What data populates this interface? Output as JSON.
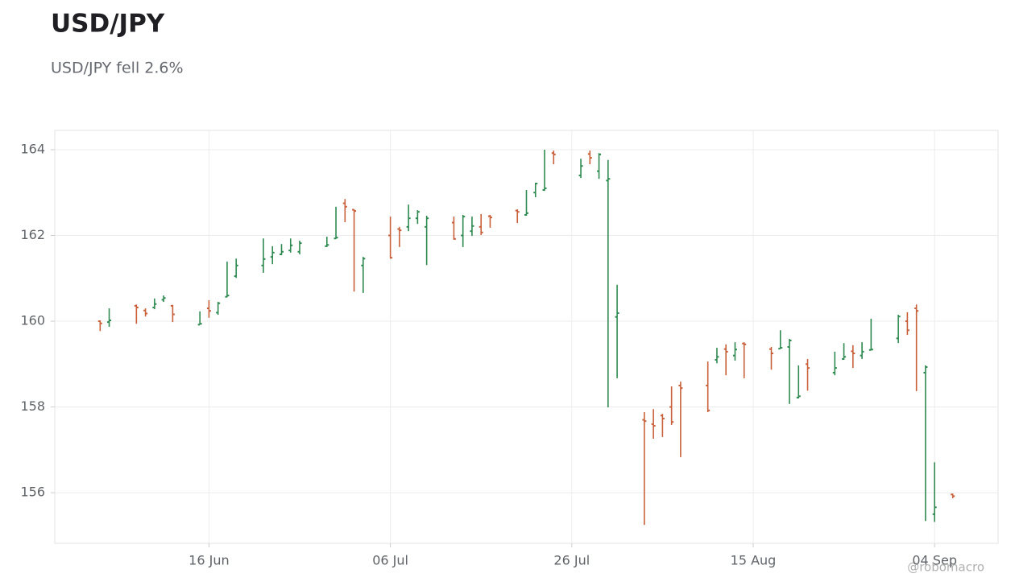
{
  "chart_data": {
    "type": "ohlc",
    "title": "USD/JPY",
    "subtitle": "USD/JPY fell 2.6%",
    "watermark": "@robomacro",
    "up_color": "#2e8a50",
    "down_color": "#c8603a",
    "grid": true,
    "x": [
      "06-04",
      "06-05",
      "06-08",
      "06-09",
      "06-10",
      "06-11",
      "06-12",
      "06-15",
      "06-16",
      "06-17",
      "06-18",
      "06-19",
      "06-22",
      "06-23",
      "06-24",
      "06-25",
      "06-26",
      "06-29",
      "06-30",
      "07-01",
      "07-02",
      "07-03",
      "07-06",
      "07-07",
      "07-08",
      "07-09",
      "07-10",
      "07-13",
      "07-14",
      "07-15",
      "07-16",
      "07-17",
      "07-20",
      "07-21",
      "07-22",
      "07-23",
      "07-24",
      "07-27",
      "07-28",
      "07-29",
      "07-30",
      "07-31",
      "08-03",
      "08-04",
      "08-05",
      "08-06",
      "08-07",
      "08-10",
      "08-11",
      "08-12",
      "08-13",
      "08-14",
      "08-17",
      "08-18",
      "08-19",
      "08-20",
      "08-21",
      "08-24",
      "08-25",
      "08-26",
      "08-27",
      "08-28",
      "08-31",
      "09-01",
      "09-02",
      "09-03",
      "09-04",
      "09-06"
    ],
    "open": [
      160.0,
      159.98,
      160.36,
      160.25,
      160.32,
      160.5,
      160.36,
      159.92,
      160.3,
      160.2,
      160.57,
      161.05,
      161.3,
      161.5,
      161.56,
      161.65,
      161.62,
      161.75,
      161.93,
      162.75,
      162.6,
      161.3,
      162.0,
      162.15,
      162.2,
      162.4,
      162.2,
      162.3,
      162.0,
      162.1,
      162.2,
      162.45,
      162.58,
      162.48,
      163.0,
      163.06,
      163.92,
      163.4,
      163.9,
      163.5,
      163.28,
      160.1,
      157.7,
      157.6,
      157.8,
      158.0,
      158.5,
      158.5,
      159.1,
      159.35,
      159.2,
      159.48,
      159.35,
      159.36,
      159.4,
      158.22,
      159.0,
      158.8,
      159.12,
      159.3,
      159.2,
      159.33,
      159.6,
      160.0,
      160.3,
      158.8,
      155.5,
      155.96
    ],
    "high": [
      160.02,
      160.3,
      160.39,
      160.3,
      160.53,
      160.6,
      160.38,
      160.23,
      160.49,
      160.45,
      161.39,
      161.46,
      161.93,
      161.75,
      161.8,
      161.93,
      161.88,
      161.97,
      162.67,
      162.85,
      162.61,
      161.5,
      162.44,
      162.2,
      162.72,
      162.59,
      162.46,
      162.44,
      162.48,
      162.44,
      162.5,
      162.48,
      162.61,
      163.06,
      163.23,
      164.0,
      163.98,
      163.79,
      163.98,
      163.92,
      163.76,
      160.85,
      157.88,
      157.95,
      157.84,
      158.48,
      158.59,
      159.06,
      159.38,
      159.46,
      159.51,
      159.51,
      159.4,
      159.79,
      159.59,
      158.97,
      159.12,
      159.29,
      159.49,
      159.44,
      159.51,
      160.06,
      160.15,
      160.21,
      160.39,
      158.97,
      156.71,
      155.98
    ],
    "low": [
      159.77,
      159.87,
      159.94,
      160.11,
      160.28,
      160.45,
      159.98,
      159.92,
      160.08,
      160.15,
      160.56,
      161.01,
      161.13,
      161.33,
      161.54,
      161.6,
      161.56,
      161.73,
      161.92,
      162.31,
      160.69,
      160.66,
      161.46,
      161.73,
      162.1,
      162.27,
      161.31,
      161.9,
      161.73,
      161.99,
      162.01,
      162.18,
      162.29,
      162.46,
      162.89,
      163.04,
      163.66,
      163.34,
      163.66,
      163.32,
      157.99,
      158.67,
      155.25,
      157.26,
      157.3,
      157.58,
      156.83,
      157.88,
      159.02,
      158.74,
      159.08,
      158.67,
      158.87,
      159.36,
      158.07,
      158.2,
      158.38,
      158.74,
      159.1,
      158.91,
      159.12,
      159.32,
      159.49,
      159.68,
      158.37,
      155.34,
      155.32,
      155.87
    ],
    "close": [
      159.95,
      160.02,
      160.32,
      160.18,
      160.4,
      160.54,
      160.16,
      159.94,
      160.24,
      160.42,
      160.6,
      161.3,
      161.45,
      161.6,
      161.62,
      161.77,
      161.82,
      161.78,
      161.95,
      162.67,
      162.57,
      161.46,
      161.48,
      162.12,
      162.4,
      162.55,
      162.4,
      161.92,
      162.44,
      162.22,
      162.07,
      162.42,
      162.55,
      162.52,
      163.21,
      163.1,
      163.89,
      163.62,
      163.81,
      163.89,
      163.32,
      160.19,
      157.67,
      157.56,
      157.73,
      157.65,
      158.44,
      157.92,
      159.17,
      159.29,
      159.34,
      159.46,
      159.25,
      159.38,
      159.55,
      158.25,
      158.91,
      158.91,
      159.17,
      159.25,
      159.29,
      159.34,
      160.11,
      159.79,
      160.24,
      158.93,
      155.66,
      155.92
    ],
    "xlim": [
      "05-30",
      "09-11"
    ],
    "xticks": [
      {
        "value": "06-16",
        "label": "16 Jun"
      },
      {
        "value": "07-06",
        "label": "06 Jul"
      },
      {
        "value": "07-26",
        "label": "26 Jul"
      },
      {
        "value": "08-15",
        "label": "15 Aug"
      },
      {
        "value": "09-04",
        "label": "04 Sep"
      }
    ],
    "ylim": [
      154.82,
      164.45
    ],
    "yticks": [
      156,
      158,
      160,
      162,
      164
    ]
  }
}
